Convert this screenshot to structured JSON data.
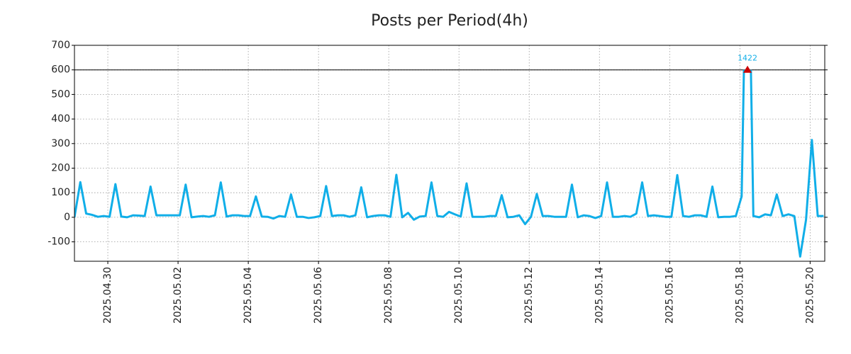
{
  "chart_data": {
    "type": "line",
    "title": "Posts per Period(4h)",
    "values": [
      0,
      143,
      15,
      10,
      2,
      5,
      2,
      135,
      3,
      0,
      8,
      7,
      5,
      125,
      8,
      8,
      8,
      8,
      8,
      133,
      0,
      3,
      5,
      2,
      8,
      142,
      3,
      8,
      8,
      5,
      5,
      85,
      3,
      2,
      -5,
      5,
      2,
      93,
      2,
      2,
      -3,
      0,
      5,
      127,
      5,
      8,
      8,
      2,
      8,
      122,
      0,
      5,
      8,
      8,
      2,
      173,
      0,
      18,
      -10,
      3,
      5,
      142,
      5,
      2,
      22,
      12,
      3,
      138,
      2,
      2,
      2,
      5,
      5,
      90,
      0,
      2,
      8,
      -28,
      2,
      95,
      5,
      5,
      2,
      2,
      2,
      133,
      0,
      8,
      5,
      -3,
      5,
      142,
      2,
      2,
      5,
      2,
      15,
      142,
      5,
      8,
      5,
      2,
      2,
      172,
      5,
      2,
      8,
      8,
      2,
      125,
      0,
      2,
      2,
      5,
      85,
      1422,
      5,
      0,
      12,
      8,
      93,
      5,
      12,
      5,
      -160,
      -10,
      315,
      5,
      5
    ],
    "color": "#10aee8",
    "xlim": [
      0,
      128.2
    ],
    "xticks": [
      {
        "value": 5.7,
        "label": "2025.04.30"
      },
      {
        "value": 17.7,
        "label": "2025.05.02"
      },
      {
        "value": 29.7,
        "label": "2025.05.04"
      },
      {
        "value": 41.7,
        "label": "2025.05.06"
      },
      {
        "value": 53.7,
        "label": "2025.05.08"
      },
      {
        "value": 65.7,
        "label": "2025.05.10"
      },
      {
        "value": 77.7,
        "label": "2025.05.12"
      },
      {
        "value": 89.7,
        "label": "2025.05.14"
      },
      {
        "value": 101.7,
        "label": "2025.05.16"
      },
      {
        "value": 113.7,
        "label": "2025.05.18"
      },
      {
        "value": 125.7,
        "label": "2025.05.20"
      }
    ],
    "ylim": [
      -179,
      700
    ],
    "yticks": [
      -100,
      0,
      100,
      200,
      300,
      400,
      500,
      600,
      700
    ],
    "hline": 600,
    "grid": true,
    "marker_color": "#cc0000"
  }
}
